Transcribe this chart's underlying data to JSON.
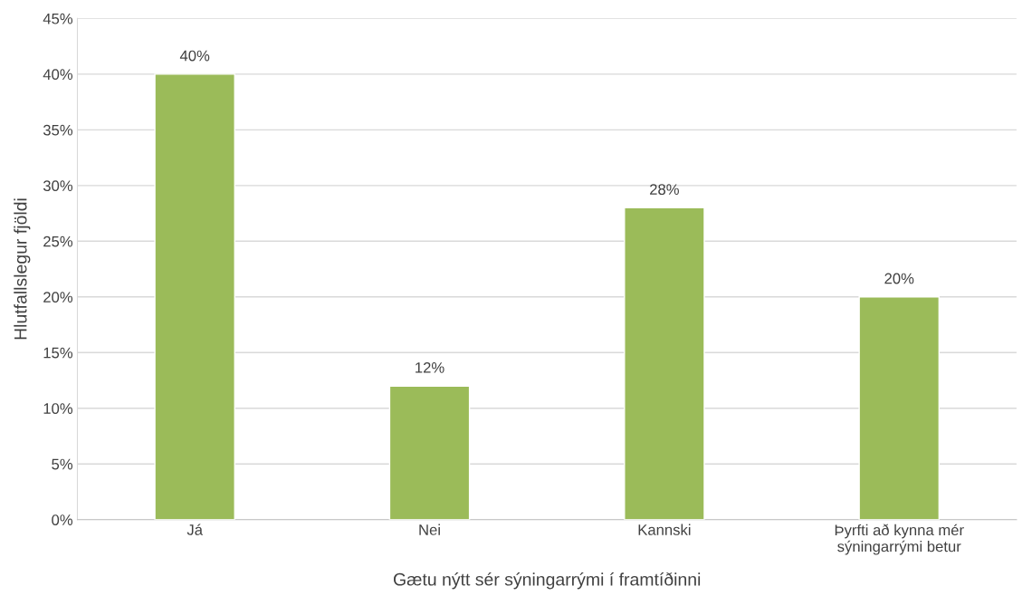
{
  "chart_data": {
    "type": "bar",
    "xlabel": "Gætu nýtt sér sýningarrými í framtíðinni",
    "ylabel": "Hlutfallslegur fjöldi",
    "categories": [
      "Já",
      "Nei",
      "Kannski",
      "Þyrfti að kynna mér\nsýningarrými betur"
    ],
    "values": [
      40,
      12,
      28,
      20
    ],
    "color": "#9bbb59",
    "value_labels": [
      "40%",
      "12%",
      "28%",
      "20%"
    ],
    "ylim": [
      0,
      45
    ],
    "yticks": [
      {
        "value": 0,
        "label": "0%"
      },
      {
        "value": 5,
        "label": "5%"
      },
      {
        "value": 10,
        "label": "10%"
      },
      {
        "value": 15,
        "label": "15%"
      },
      {
        "value": 20,
        "label": "20%"
      },
      {
        "value": 25,
        "label": "25%"
      },
      {
        "value": 30,
        "label": "30%"
      },
      {
        "value": 35,
        "label": "35%"
      },
      {
        "value": 40,
        "label": "40%"
      },
      {
        "value": 45,
        "label": "45%"
      }
    ],
    "grid": "y"
  }
}
